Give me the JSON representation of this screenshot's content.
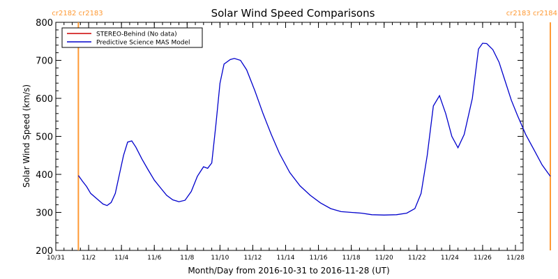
{
  "chart_data": {
    "type": "line",
    "title": "Solar Wind Speed Comparisons",
    "xlabel": "Month/Day from 2016-10-31 to 2016-11-28 (UT)",
    "ylabel": "Solar Wind Speed (km/s)",
    "xlim": [
      "2016-10-31",
      "2016-11-28"
    ],
    "ylim": [
      200,
      800
    ],
    "y_ticks": [
      200,
      300,
      400,
      500,
      600,
      700,
      800
    ],
    "x_ticks": [
      {
        "date": "2016-10-31",
        "label": "10/31"
      },
      {
        "date": "2016-11-02",
        "label": "11/2"
      },
      {
        "date": "2016-11-04",
        "label": "11/4"
      },
      {
        "date": "2016-11-06",
        "label": "11/6"
      },
      {
        "date": "2016-11-08",
        "label": "11/8"
      },
      {
        "date": "2016-11-10",
        "label": "11/10"
      },
      {
        "date": "2016-11-12",
        "label": "11/12"
      },
      {
        "date": "2016-11-14",
        "label": "11/14"
      },
      {
        "date": "2016-11-16",
        "label": "11/16"
      },
      {
        "date": "2016-11-18",
        "label": "11/18"
      },
      {
        "date": "2016-11-20",
        "label": "11/20"
      },
      {
        "date": "2016-11-22",
        "label": "11/22"
      },
      {
        "date": "2016-11-24",
        "label": "11/24"
      },
      {
        "date": "2016-11-26",
        "label": "11/26"
      },
      {
        "date": "2016-11-28",
        "label": "11/28"
      }
    ],
    "legend_placement": "top-left",
    "series": [
      {
        "name": "STEREO-Behind (No data)",
        "color": "#cc0000",
        "points": []
      },
      {
        "name": "Predictive Science MAS Model",
        "color": "#0000cc",
        "points": [
          [
            "2016-11-01 09:00",
            397
          ],
          [
            "2016-11-01 15:00",
            382
          ],
          [
            "2016-11-01 21:00",
            368
          ],
          [
            "2016-11-02 03:00",
            350
          ],
          [
            "2016-11-02 12:00",
            336
          ],
          [
            "2016-11-02 21:00",
            322
          ],
          [
            "2016-11-03 03:00",
            318
          ],
          [
            "2016-11-03 09:00",
            326
          ],
          [
            "2016-11-03 15:00",
            350
          ],
          [
            "2016-11-03 21:00",
            400
          ],
          [
            "2016-11-04 03:00",
            450
          ],
          [
            "2016-11-04 09:00",
            485
          ],
          [
            "2016-11-04 15:00",
            488
          ],
          [
            "2016-11-04 21:00",
            472
          ],
          [
            "2016-11-05 06:00",
            440
          ],
          [
            "2016-11-05 15:00",
            412
          ],
          [
            "2016-11-06 00:00",
            385
          ],
          [
            "2016-11-06 09:00",
            365
          ],
          [
            "2016-11-06 18:00",
            345
          ],
          [
            "2016-11-07 03:00",
            333
          ],
          [
            "2016-11-07 12:00",
            328
          ],
          [
            "2016-11-07 21:00",
            332
          ],
          [
            "2016-11-08 06:00",
            355
          ],
          [
            "2016-11-08 15:00",
            395
          ],
          [
            "2016-11-09 00:00",
            420
          ],
          [
            "2016-11-09 06:00",
            416
          ],
          [
            "2016-11-09 12:00",
            430
          ],
          [
            "2016-11-09 18:00",
            530
          ],
          [
            "2016-11-10 00:00",
            640
          ],
          [
            "2016-11-10 06:00",
            690
          ],
          [
            "2016-11-10 15:00",
            702
          ],
          [
            "2016-11-10 21:00",
            705
          ],
          [
            "2016-11-11 06:00",
            700
          ],
          [
            "2016-11-11 15:00",
            675
          ],
          [
            "2016-11-12 03:00",
            620
          ],
          [
            "2016-11-12 15:00",
            560
          ],
          [
            "2016-11-13 03:00",
            505
          ],
          [
            "2016-11-13 15:00",
            455
          ],
          [
            "2016-11-14 06:00",
            405
          ],
          [
            "2016-11-14 21:00",
            370
          ],
          [
            "2016-11-15 12:00",
            345
          ],
          [
            "2016-11-16 03:00",
            325
          ],
          [
            "2016-11-16 18:00",
            310
          ],
          [
            "2016-11-17 09:00",
            302
          ],
          [
            "2016-11-18 00:00",
            300
          ],
          [
            "2016-11-18 15:00",
            298
          ],
          [
            "2016-11-19 06:00",
            294
          ],
          [
            "2016-11-20 00:00",
            293
          ],
          [
            "2016-11-20 18:00",
            294
          ],
          [
            "2016-11-21 09:00",
            298
          ],
          [
            "2016-11-21 21:00",
            310
          ],
          [
            "2016-11-22 06:00",
            350
          ],
          [
            "2016-11-22 15:00",
            450
          ],
          [
            "2016-11-23 00:00",
            580
          ],
          [
            "2016-11-23 09:00",
            607
          ],
          [
            "2016-11-23 18:00",
            560
          ],
          [
            "2016-11-24 03:00",
            500
          ],
          [
            "2016-11-24 12:00",
            470
          ],
          [
            "2016-11-24 21:00",
            505
          ],
          [
            "2016-11-25 09:00",
            600
          ],
          [
            "2016-11-25 18:00",
            730
          ],
          [
            "2016-11-26 00:00",
            745
          ],
          [
            "2016-11-26 06:00",
            744
          ],
          [
            "2016-11-26 15:00",
            728
          ],
          [
            "2016-11-27 00:00",
            695
          ],
          [
            "2016-11-27 09:00",
            645
          ],
          [
            "2016-11-27 18:00",
            595
          ],
          [
            "2016-11-28 03:00",
            555
          ],
          [
            "2016-11-28 15:00",
            505
          ],
          [
            "2016-11-29 03:00",
            465
          ],
          [
            "2016-11-29 15:00",
            425
          ],
          [
            "2016-11-30 03:00",
            395
          ]
        ]
      }
    ],
    "markers": [
      {
        "date": "2016-11-01 09:00",
        "label": "cr2182 cr2183",
        "color": "#ff9933"
      },
      {
        "date": "2016-11-30 03:00",
        "label": "cr2183 cr2184",
        "color": "#ff9933"
      }
    ]
  }
}
